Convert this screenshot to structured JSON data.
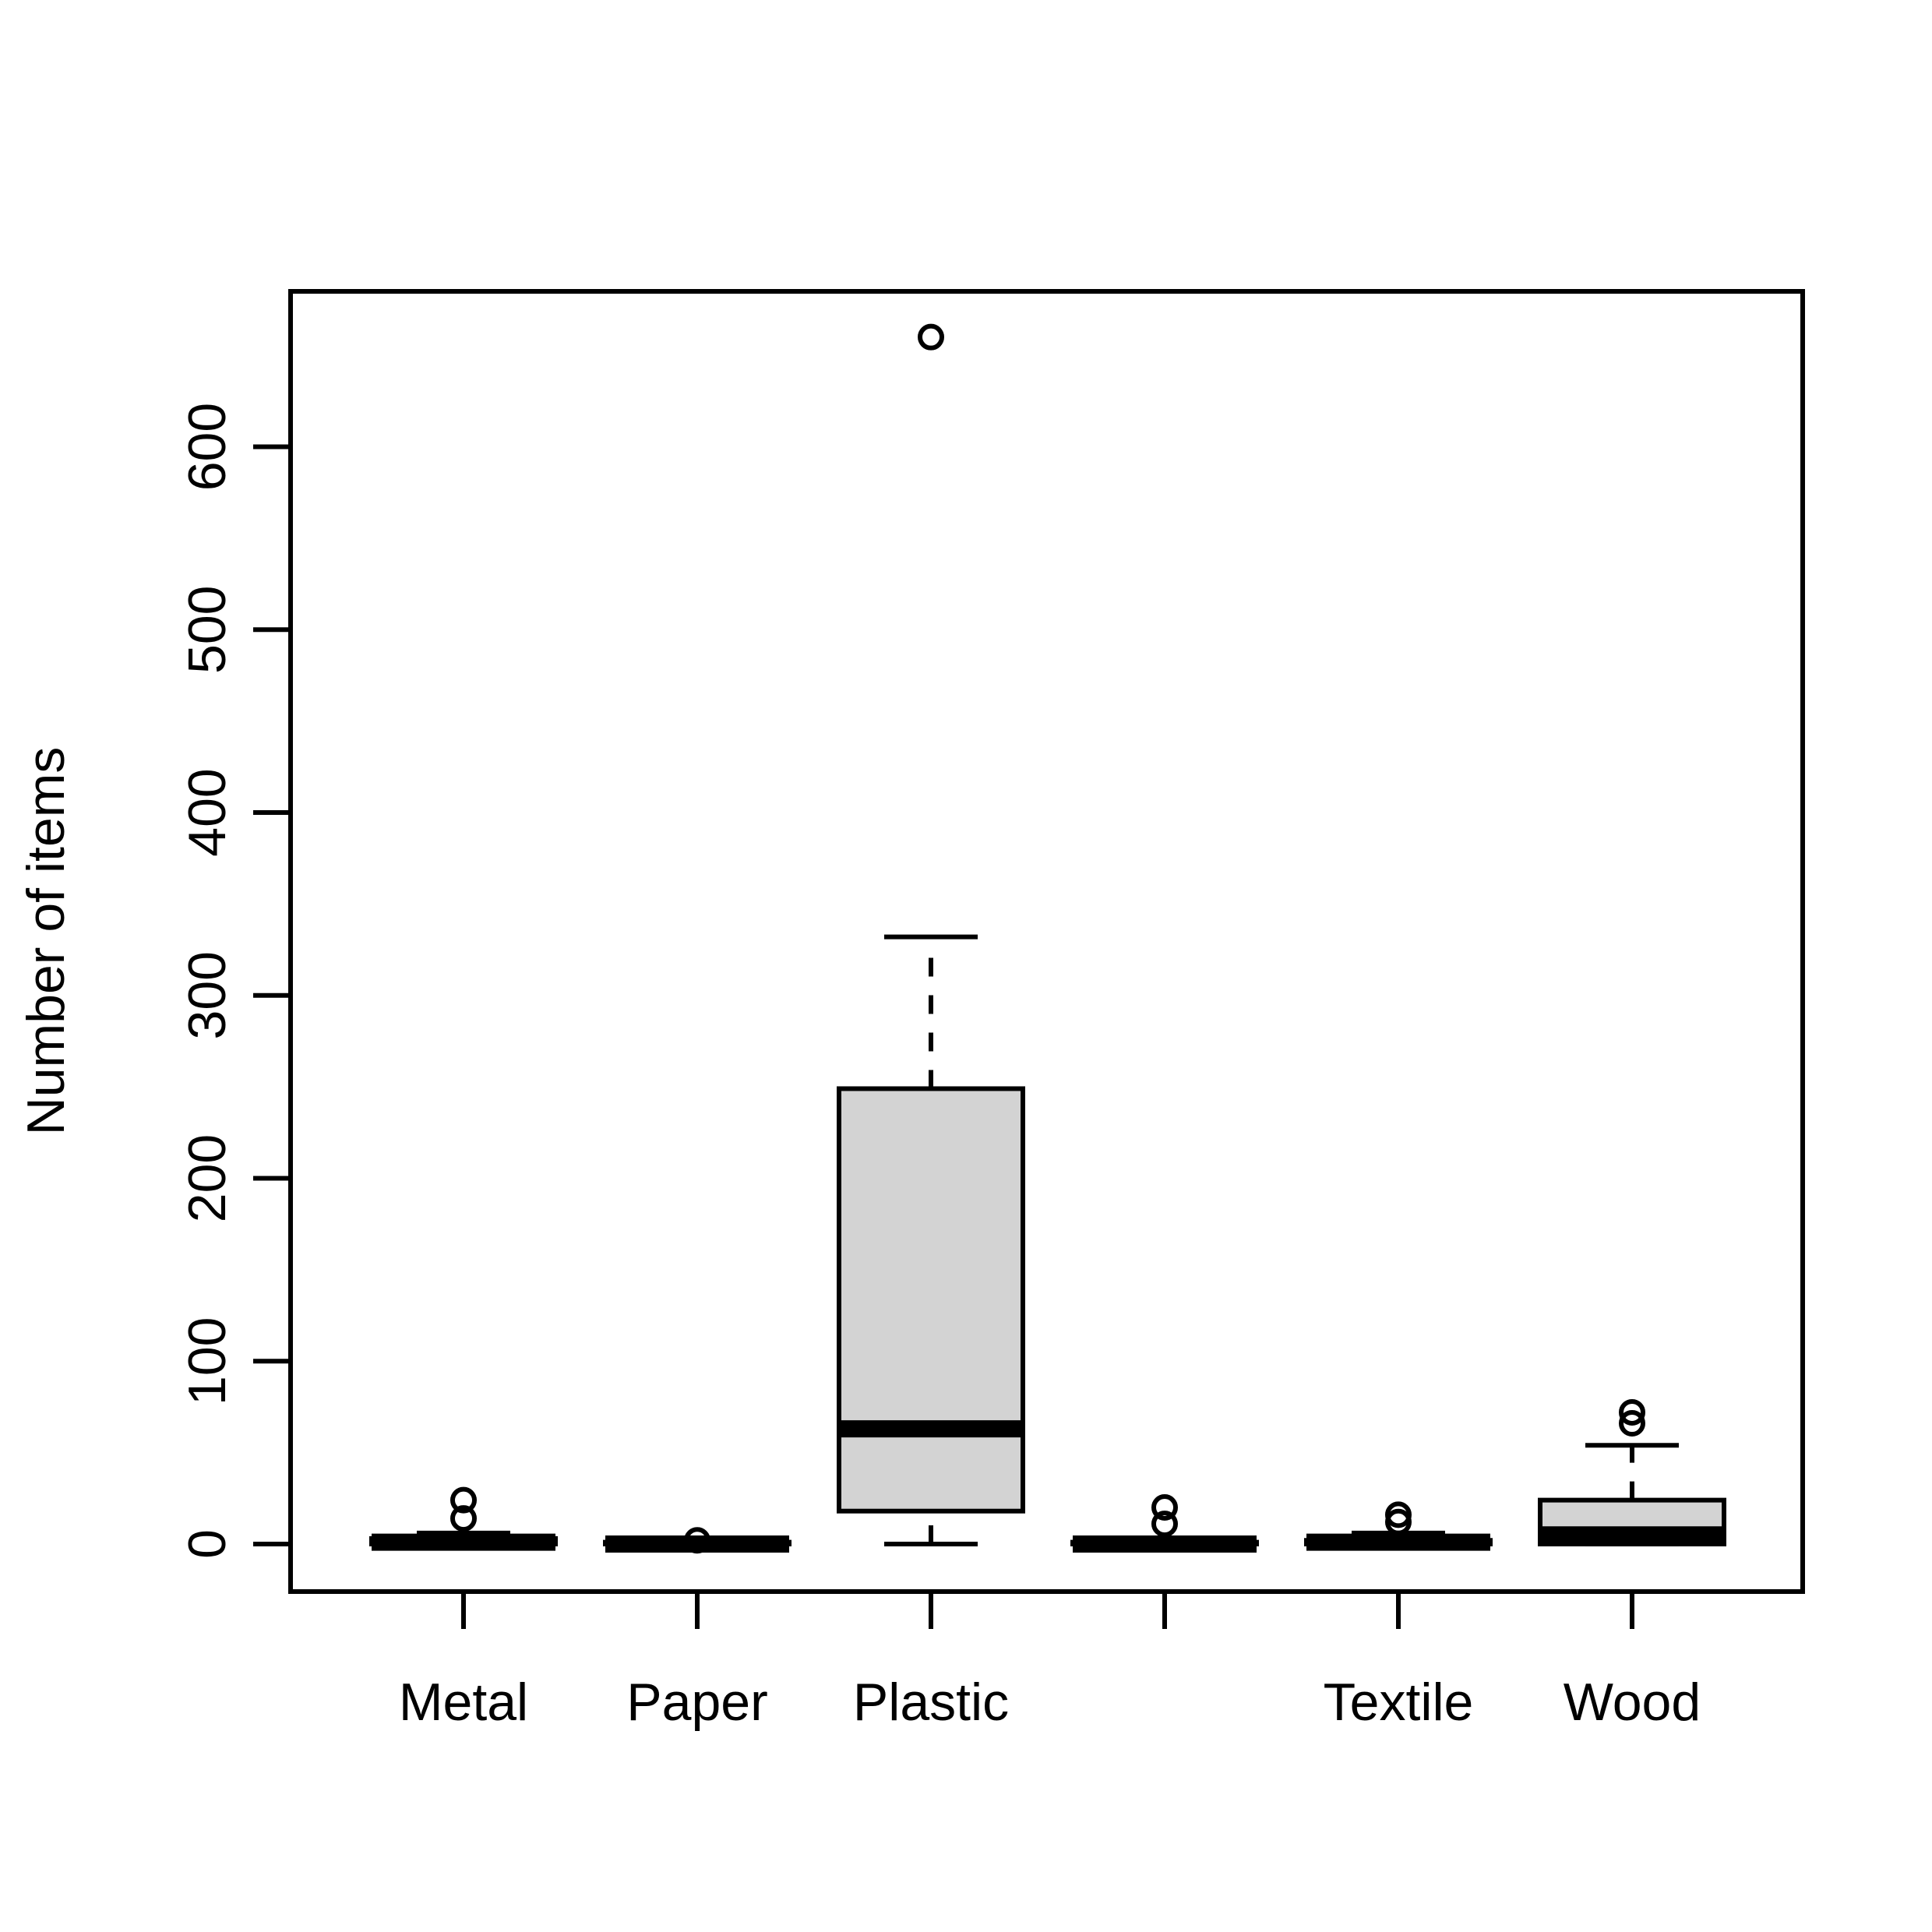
{
  "chart_data": {
    "type": "box",
    "title": "",
    "xlabel": "",
    "ylabel": "Number of items",
    "ylim": [
      -26,
      685
    ],
    "yticks": [
      0,
      100,
      200,
      300,
      400,
      500,
      600
    ],
    "categories": [
      "Metal",
      "Paper",
      "Plastic",
      "",
      "Textile",
      "Wood"
    ],
    "boxes": [
      {
        "category": "Metal",
        "min": 0,
        "q1": 0,
        "median": 1,
        "q3": 3,
        "max": 6,
        "outliers": [
          14,
          24
        ]
      },
      {
        "category": "Paper",
        "min": 0,
        "q1": 0,
        "median": 0,
        "q3": 1,
        "max": 1,
        "outliers": [
          2
        ]
      },
      {
        "category": "Plastic",
        "min": 0,
        "q1": 18,
        "median": 63,
        "q3": 249,
        "max": 332,
        "outliers": [
          660
        ]
      },
      {
        "category": "",
        "min": 0,
        "q1": 0,
        "median": 0,
        "q3": 1,
        "max": 1,
        "outliers": [
          11,
          20
        ]
      },
      {
        "category": "Textile",
        "min": 0,
        "q1": 0,
        "median": 1,
        "q3": 2,
        "max": 6,
        "outliers": [
          12,
          16
        ]
      },
      {
        "category": "Wood",
        "min": 0,
        "q1": 0,
        "median": 5,
        "q3": 24,
        "max": 54,
        "outliers": [
          66,
          72
        ]
      }
    ],
    "box_fill": "#d3d3d3",
    "grid": false,
    "legend": "none"
  }
}
